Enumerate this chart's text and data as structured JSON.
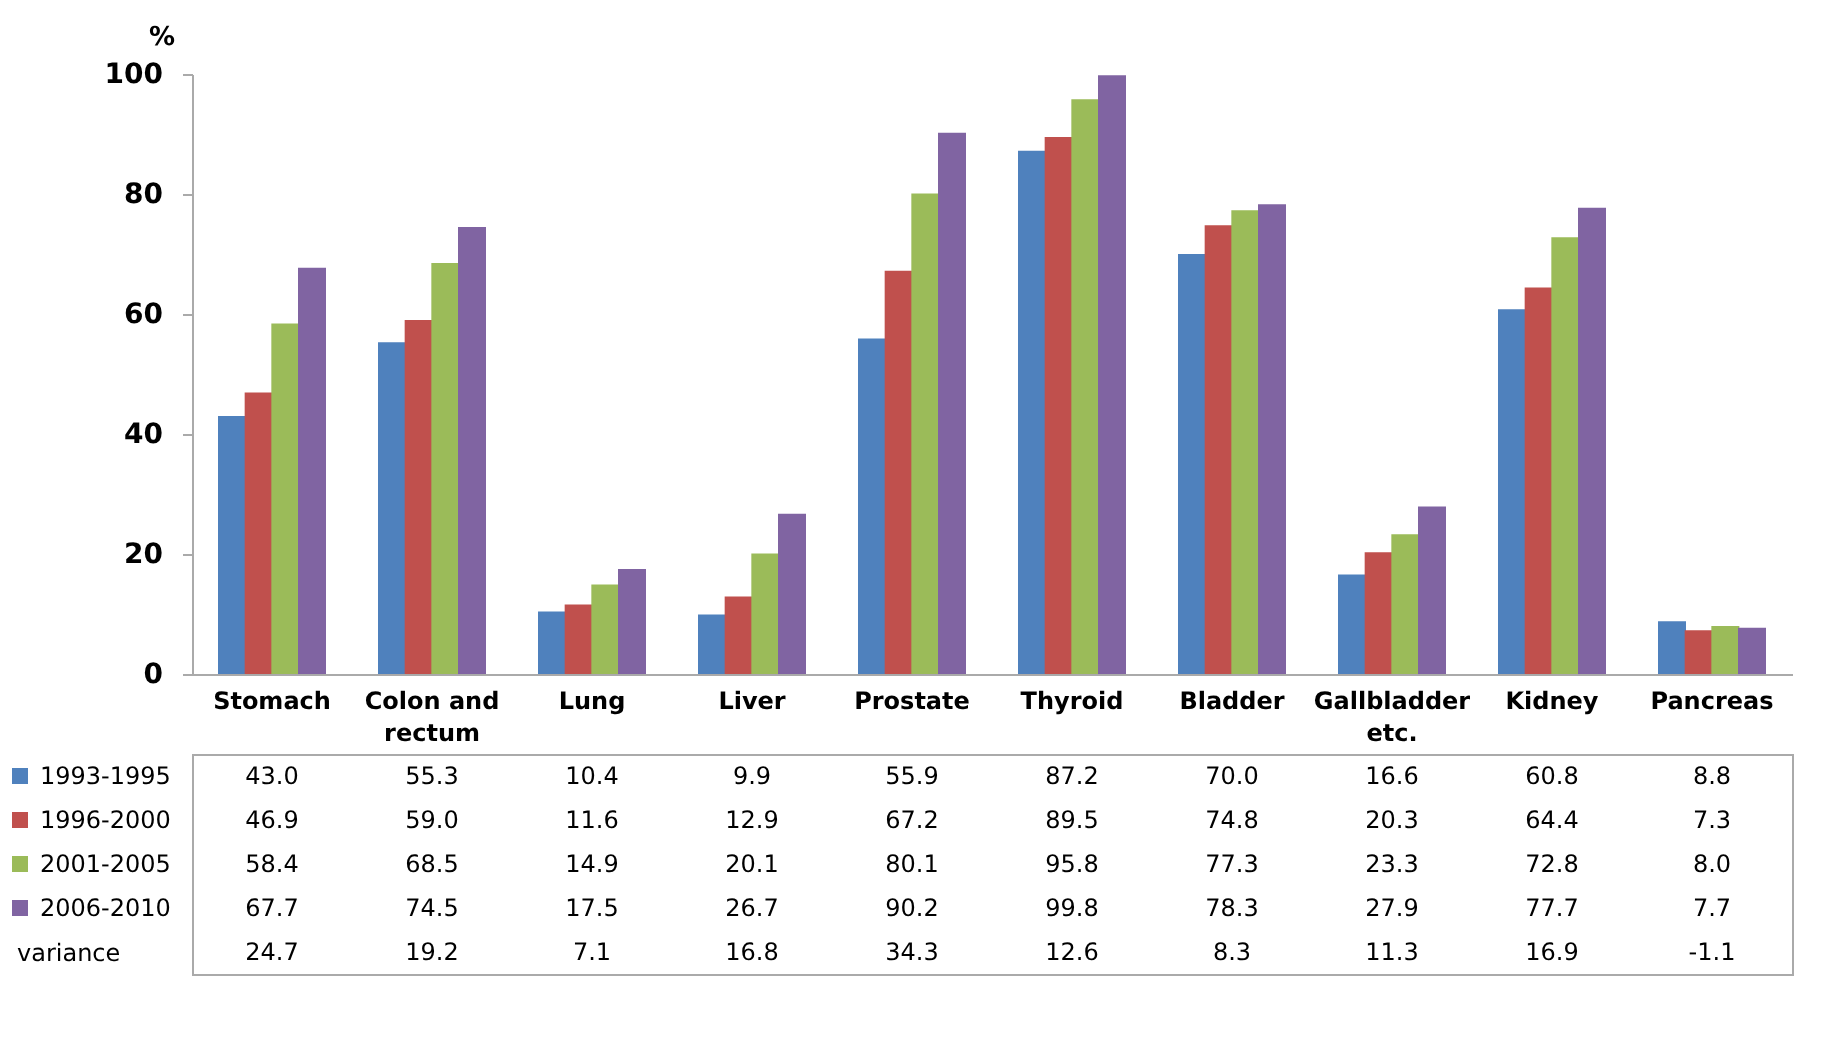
{
  "chart_data": {
    "type": "bar",
    "ylabel": "%",
    "categories": [
      "Stomach",
      "Colon and rectum",
      "Lung",
      "Liver",
      "Prostate",
      "Thyroid",
      "Bladder",
      "Gallbladder etc.",
      "Kidney",
      "Pancreas"
    ],
    "series": [
      {
        "name": "1993-1995",
        "color": "#4f81bd",
        "values": [
          43.0,
          55.3,
          10.4,
          9.9,
          55.9,
          87.2,
          70.0,
          16.6,
          60.8,
          8.8
        ],
        "value_labels": [
          "43.0",
          "55.3",
          "10.4",
          "9.9",
          "55.9",
          "87.2",
          "70.0",
          "16.6",
          "60.8",
          "8.8"
        ]
      },
      {
        "name": "1996-2000",
        "color": "#c0504d",
        "values": [
          46.9,
          59.0,
          11.6,
          12.9,
          67.2,
          89.5,
          74.8,
          20.3,
          64.4,
          7.3
        ],
        "value_labels": [
          "46.9",
          "59.0",
          "11.6",
          "12.9",
          "67.2",
          "89.5",
          "74.8",
          "20.3",
          "64.4",
          "7.3"
        ]
      },
      {
        "name": "2001-2005",
        "color": "#9bbb59",
        "values": [
          58.4,
          68.5,
          14.9,
          20.1,
          80.1,
          95.8,
          77.3,
          23.3,
          72.8,
          8.0
        ],
        "value_labels": [
          "58.4",
          "68.5",
          "14.9",
          "20.1",
          "80.1",
          "95.8",
          "77.3",
          "23.3",
          "72.8",
          "8.0"
        ]
      },
      {
        "name": "2006-2010",
        "color": "#8064a2",
        "values": [
          67.7,
          74.5,
          17.5,
          26.7,
          90.2,
          99.8,
          78.3,
          27.9,
          77.7,
          7.7
        ],
        "value_labels": [
          "67.7",
          "74.5",
          "17.5",
          "26.7",
          "90.2",
          "99.8",
          "78.3",
          "27.9",
          "77.7",
          "7.7"
        ]
      }
    ],
    "ylim": [
      0,
      100
    ],
    "yticks": [
      0,
      20,
      40,
      60,
      80,
      100
    ],
    "grid": false,
    "legend": "bottom left",
    "annotations": [
      "variance",
      "24.7",
      "19.2",
      "7.1",
      "16.8",
      "34.3",
      "12.6",
      "8.3",
      "11.3",
      "16.9",
      "-1.1"
    ]
  }
}
